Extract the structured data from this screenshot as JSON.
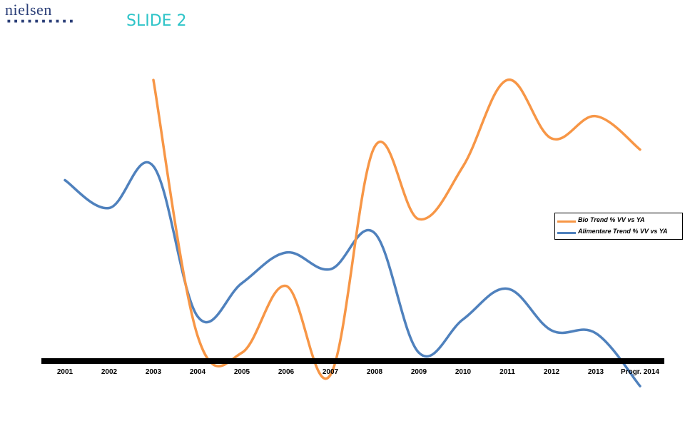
{
  "logo": {
    "text": "nielsen"
  },
  "slide_title": "SLIDE 2",
  "colors": {
    "bio": "#f79646",
    "alimentare": "#4f81bd",
    "axis": "#000000",
    "title": "#2ec4c8",
    "logo": "#2b3f78"
  },
  "chart_data": {
    "type": "line",
    "categories": [
      "2001",
      "2002",
      "2003",
      "2004",
      "2005",
      "2006",
      "2007",
      "2008",
      "2009",
      "2010",
      "2011",
      "2012",
      "2013",
      "Progr. 2014"
    ],
    "ylim": [
      -8,
      55
    ],
    "grid": false,
    "legend_position": "right",
    "series": [
      {
        "name": "Bio Trend % VV vs YA",
        "values": [
          null,
          null,
          50.5,
          4.5,
          1.5,
          13.5,
          -2.5,
          38.5,
          25.5,
          35,
          50.5,
          40,
          44,
          38
        ]
      },
      {
        "name": "Alimentare Trend % VV vs YA",
        "values": [
          32.5,
          27.5,
          35,
          8,
          14,
          19.5,
          16.5,
          23,
          1.5,
          7.5,
          13,
          5.5,
          5,
          -4.5
        ]
      }
    ]
  }
}
